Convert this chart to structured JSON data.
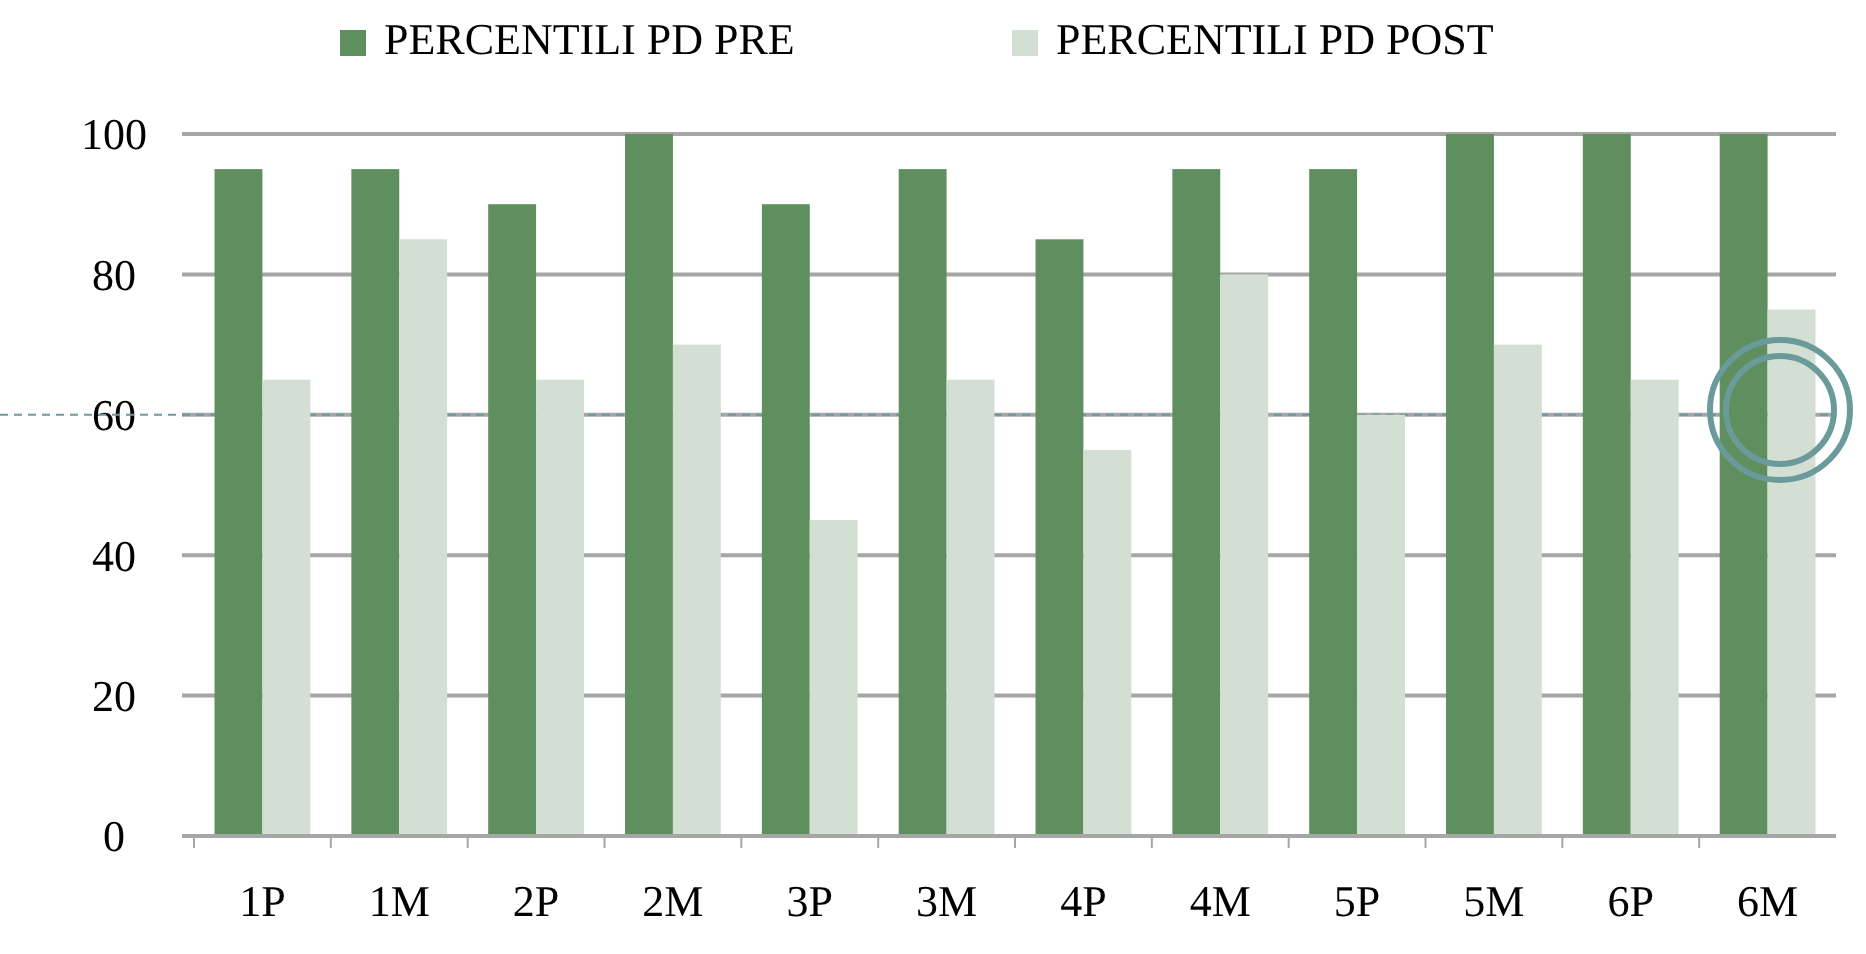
{
  "chart_data": {
    "type": "bar",
    "categories": [
      "1P",
      "1M",
      "2P",
      "2M",
      "3P",
      "3M",
      "4P",
      "4M",
      "5P",
      "5M",
      "6P",
      "6M"
    ],
    "series": [
      {
        "name": "PERCENTILI PD PRE",
        "color": "#5f8f5f",
        "values": [
          95,
          95,
          90,
          100,
          90,
          95,
          85,
          95,
          95,
          100,
          100,
          100
        ]
      },
      {
        "name": "PERCENTILI PD POST",
        "color": "#d3dfd3",
        "values": [
          65,
          85,
          65,
          70,
          45,
          65,
          55,
          80,
          60,
          70,
          65,
          75
        ]
      }
    ],
    "ylim": [
      0,
      100
    ],
    "yticks": [
      0,
      20,
      40,
      60,
      80,
      100
    ],
    "grid": "y",
    "legend": "top",
    "ref_lines": [
      {
        "axis": "y",
        "value": 60,
        "color": "#6a9a9a",
        "line_style": "dashed"
      }
    ]
  }
}
